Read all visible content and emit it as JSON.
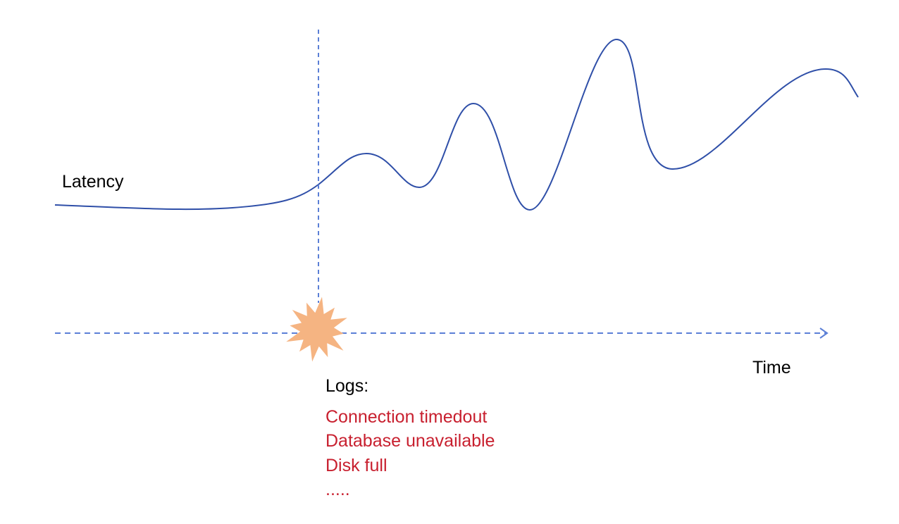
{
  "labels": {
    "latency": "Latency",
    "time": "Time",
    "logs_title": "Logs:"
  },
  "logs": [
    "Connection timedout",
    "Database unavailable",
    "Disk full",
    "....."
  ],
  "colors": {
    "curve": "#2f4fa8",
    "dashed_lines": "#5b7fd6",
    "starburst": "#f5b482",
    "log_text": "#c8202f"
  },
  "icons": {
    "event": "starburst-icon"
  }
}
